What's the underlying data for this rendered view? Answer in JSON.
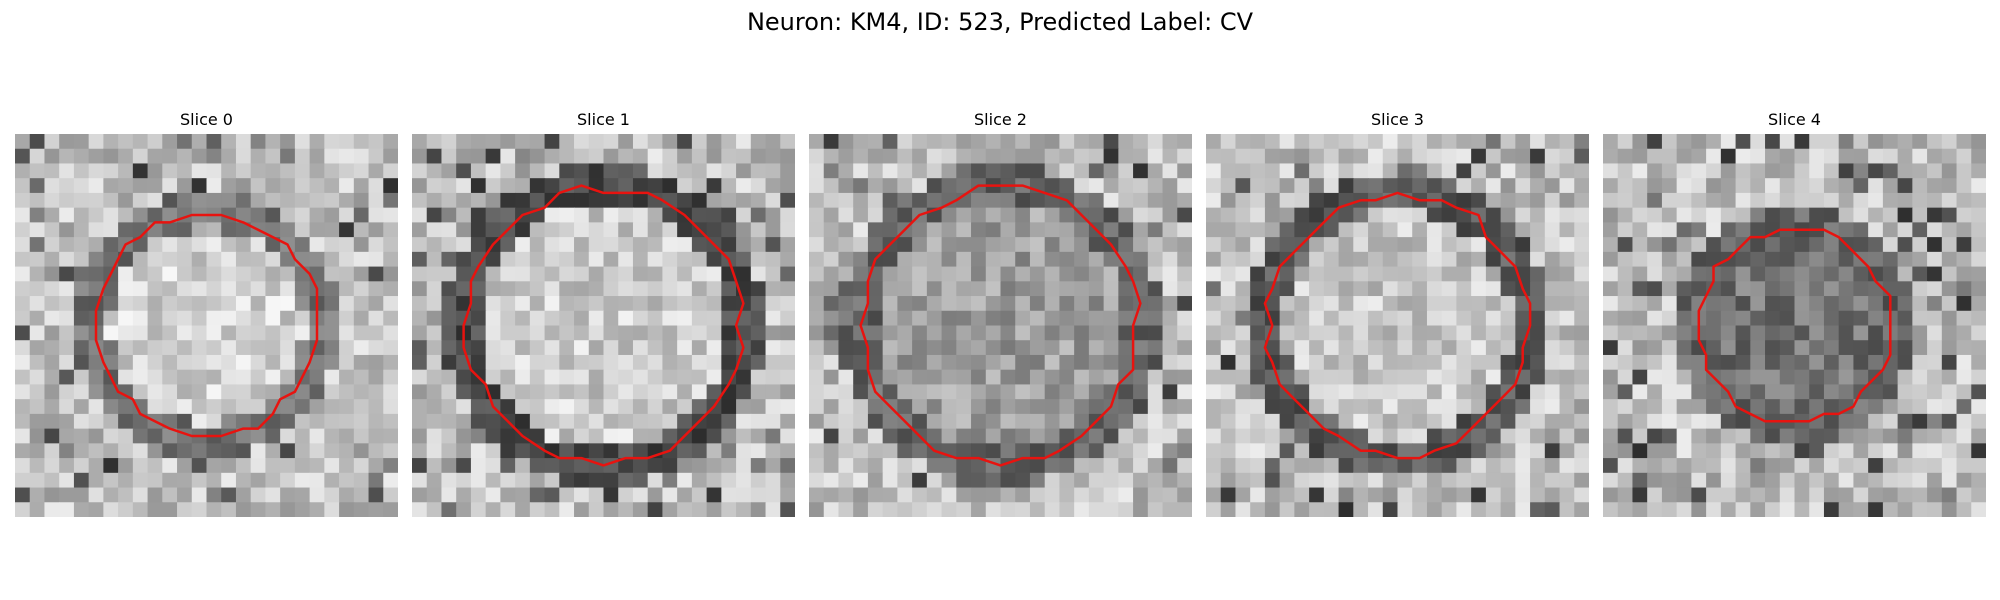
{
  "figure": {
    "title": "Neuron: KM4, ID: 523, Predicted Label: CV",
    "outline_color": "#e8130f"
  },
  "panels": [
    {
      "title": "Slice 0",
      "seed": 11,
      "roi_radius": 0.29,
      "cell_brightness": 0.82,
      "membrane": 0.45
    },
    {
      "title": "Slice 1",
      "seed": 23,
      "roi_radius": 0.36,
      "cell_brightness": 0.8,
      "membrane": 0.3
    },
    {
      "title": "Slice 2",
      "seed": 37,
      "roi_radius": 0.36,
      "cell_brightness": 0.62,
      "membrane": 0.4
    },
    {
      "title": "Slice 3",
      "seed": 51,
      "roi_radius": 0.34,
      "cell_brightness": 0.78,
      "membrane": 0.35
    },
    {
      "title": "Slice 4",
      "seed": 67,
      "roi_radius": 0.25,
      "cell_brightness": 0.45,
      "membrane": 0.4
    }
  ]
}
